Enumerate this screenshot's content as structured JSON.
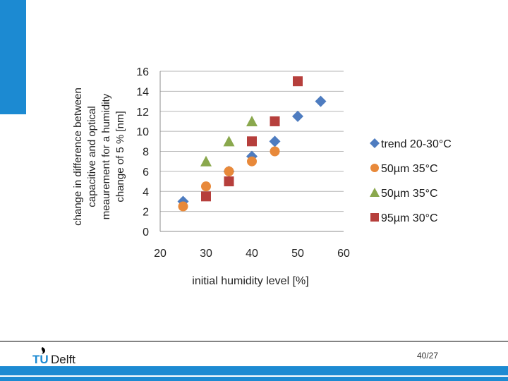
{
  "slide": {
    "page_number": "40/27",
    "logo_text_tu": "TU",
    "logo_text_delft": "Delft",
    "accent_color": "#1c8ad2"
  },
  "chart_data": {
    "type": "scatter",
    "title": "",
    "xlabel": "initial humidity level [%]",
    "ylabel_lines": [
      "change in difference between",
      "capacitive and optical",
      "meaurement for a humidity",
      "change of 5 % [nm]"
    ],
    "xlim": [
      20,
      60
    ],
    "ylim": [
      0,
      16
    ],
    "x_ticks": [
      20,
      30,
      40,
      50,
      60
    ],
    "y_ticks": [
      0,
      2,
      4,
      6,
      8,
      10,
      12,
      14,
      16
    ],
    "grid": true,
    "legend_position": "right",
    "series": [
      {
        "name": "trend 20-30°C",
        "marker": "diamond",
        "color": "#4e7cc0",
        "points": [
          [
            25,
            3
          ],
          [
            35,
            6
          ],
          [
            40,
            7.5
          ],
          [
            45,
            9
          ],
          [
            50,
            11.5
          ],
          [
            55,
            13
          ]
        ]
      },
      {
        "name": "50µm 35°C",
        "marker": "circle",
        "color": "#e8893a",
        "points": [
          [
            25,
            2.5
          ],
          [
            30,
            4.5
          ],
          [
            35,
            6
          ],
          [
            40,
            7
          ],
          [
            45,
            8
          ]
        ]
      },
      {
        "name": "50µm 35°C",
        "marker": "triangle",
        "color": "#8aa84d",
        "points": [
          [
            30,
            7
          ],
          [
            35,
            9
          ],
          [
            40,
            11
          ]
        ]
      },
      {
        "name": "95µm 30°C",
        "marker": "square",
        "color": "#b63f3c",
        "points": [
          [
            30,
            3.5
          ],
          [
            35,
            5
          ],
          [
            40,
            9
          ],
          [
            45,
            11
          ],
          [
            50,
            15
          ]
        ]
      }
    ]
  }
}
